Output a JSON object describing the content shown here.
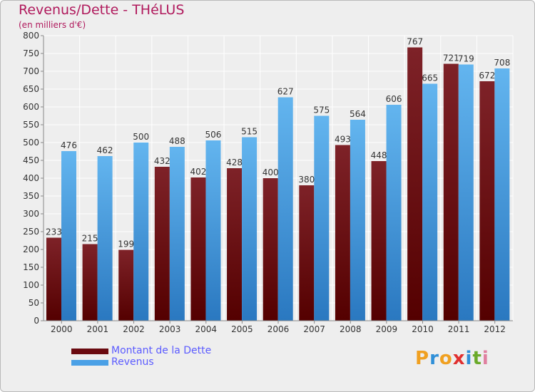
{
  "colors": {
    "debt": "#7a1a1f",
    "debt_dark": "#550000",
    "revenue": "#5aaeea",
    "revenue_dark": "#2a78c0",
    "title": "#b0195c",
    "legend_text": "#5b5bff"
  },
  "logo": {
    "letters": [
      "P",
      "r",
      "o",
      "x",
      "i",
      "t",
      "i"
    ],
    "colors": [
      "#f0a020",
      "#2f8fd8",
      "#f0a020",
      "#e03030",
      "#2f8fd8",
      "#6aaa2a",
      "#e080a0"
    ]
  },
  "chart_data": {
    "type": "bar",
    "title": "Revenus/Dette - THéLUS",
    "subtitle": "(en milliers d'€)",
    "categories": [
      "2000",
      "2001",
      "2002",
      "2003",
      "2004",
      "2005",
      "2006",
      "2007",
      "2008",
      "2009",
      "2010",
      "2011",
      "2012"
    ],
    "series": [
      {
        "name": "Montant de la Dette",
        "values": [
          233,
          215,
          199,
          432,
          402,
          428,
          400,
          380,
          493,
          448,
          767,
          721,
          672
        ]
      },
      {
        "name": "Revenus",
        "values": [
          476,
          462,
          500,
          488,
          506,
          515,
          627,
          575,
          564,
          606,
          665,
          719,
          708
        ]
      }
    ],
    "ylim": [
      0,
      800
    ],
    "yticks": [
      0,
      50,
      100,
      150,
      200,
      250,
      300,
      350,
      400,
      450,
      500,
      550,
      600,
      650,
      700,
      750,
      800
    ],
    "grid": true,
    "legend_position": "bottom-left"
  }
}
